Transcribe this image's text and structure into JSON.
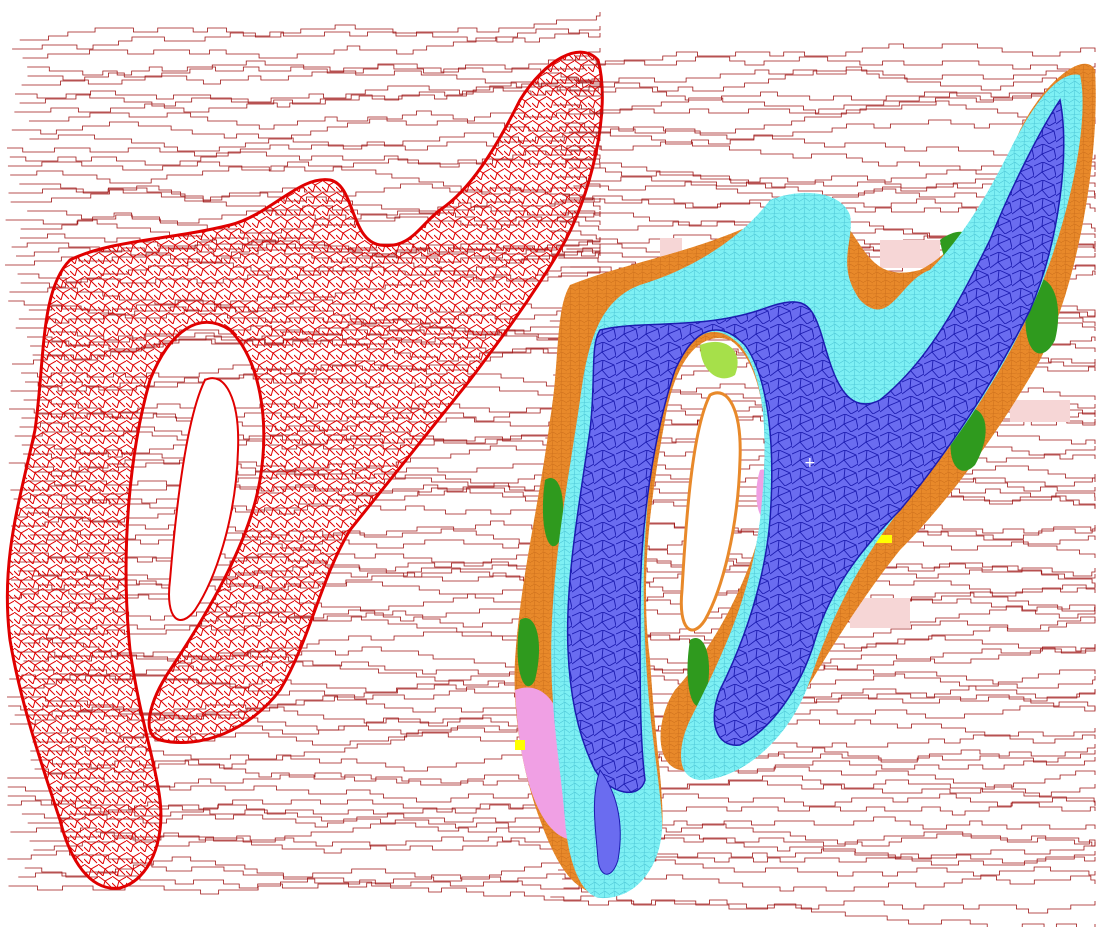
{
  "colors": {
    "background": "#ffffff",
    "mesh_red": "#e00000",
    "frame_dark_red": "#a01818",
    "deep_water_blue": "#6a6cf0",
    "deep_water_stroke": "#1c1cb0",
    "shallow_cyan": "#7ef0f4",
    "shore_orange": "#e8892a",
    "vegetation_green": "#2f9a1e",
    "light_green": "#a6e04a",
    "pink_zone": "#f0a0e4",
    "pale_pink_patch": "#f6d6d6",
    "yellow_patch": "#ffff00"
  },
  "panels": [
    {
      "id": "left-panel",
      "style": "triangulated-mesh",
      "color_key": "mesh_red"
    },
    {
      "id": "right-panel",
      "style": "classified-zones",
      "zones": [
        "deep_water_blue",
        "shallow_cyan",
        "shore_orange",
        "vegetation_green",
        "light_green",
        "pink_zone",
        "yellow_patch"
      ]
    }
  ]
}
